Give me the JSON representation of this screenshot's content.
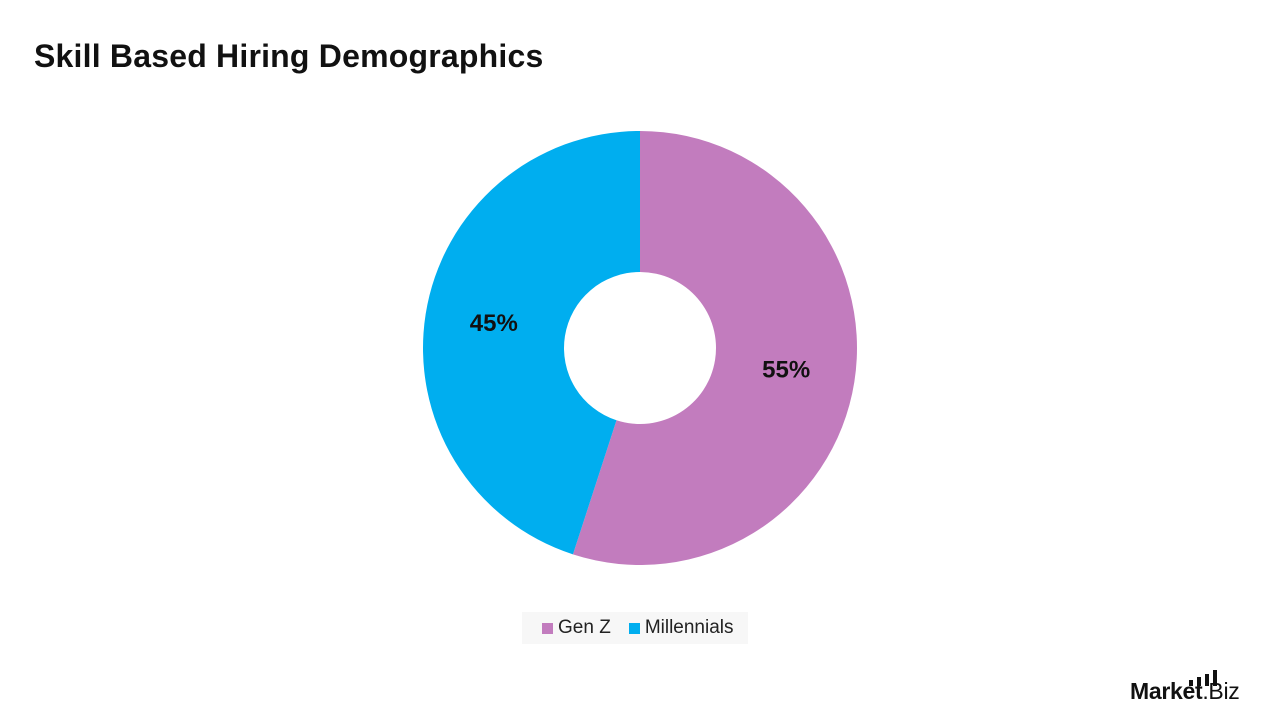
{
  "title": "Skill Based Hiring Demographics",
  "chart_data": {
    "type": "pie",
    "donut": true,
    "title": "Skill Based Hiring Demographics",
    "categories": [
      "Gen Z",
      "Millennials"
    ],
    "values": [
      55,
      45
    ],
    "value_labels": [
      "55%",
      "45%"
    ],
    "colors": [
      "#c27cbe",
      "#00aeef"
    ],
    "legend_position": "bottom-center"
  },
  "legend": {
    "items": [
      {
        "label": "Gen Z",
        "color": "#c27cbe"
      },
      {
        "label": "Millennials",
        "color": "#00aeef"
      }
    ]
  },
  "brand": {
    "text_bold": "Market",
    "text_regular": ".Biz"
  }
}
